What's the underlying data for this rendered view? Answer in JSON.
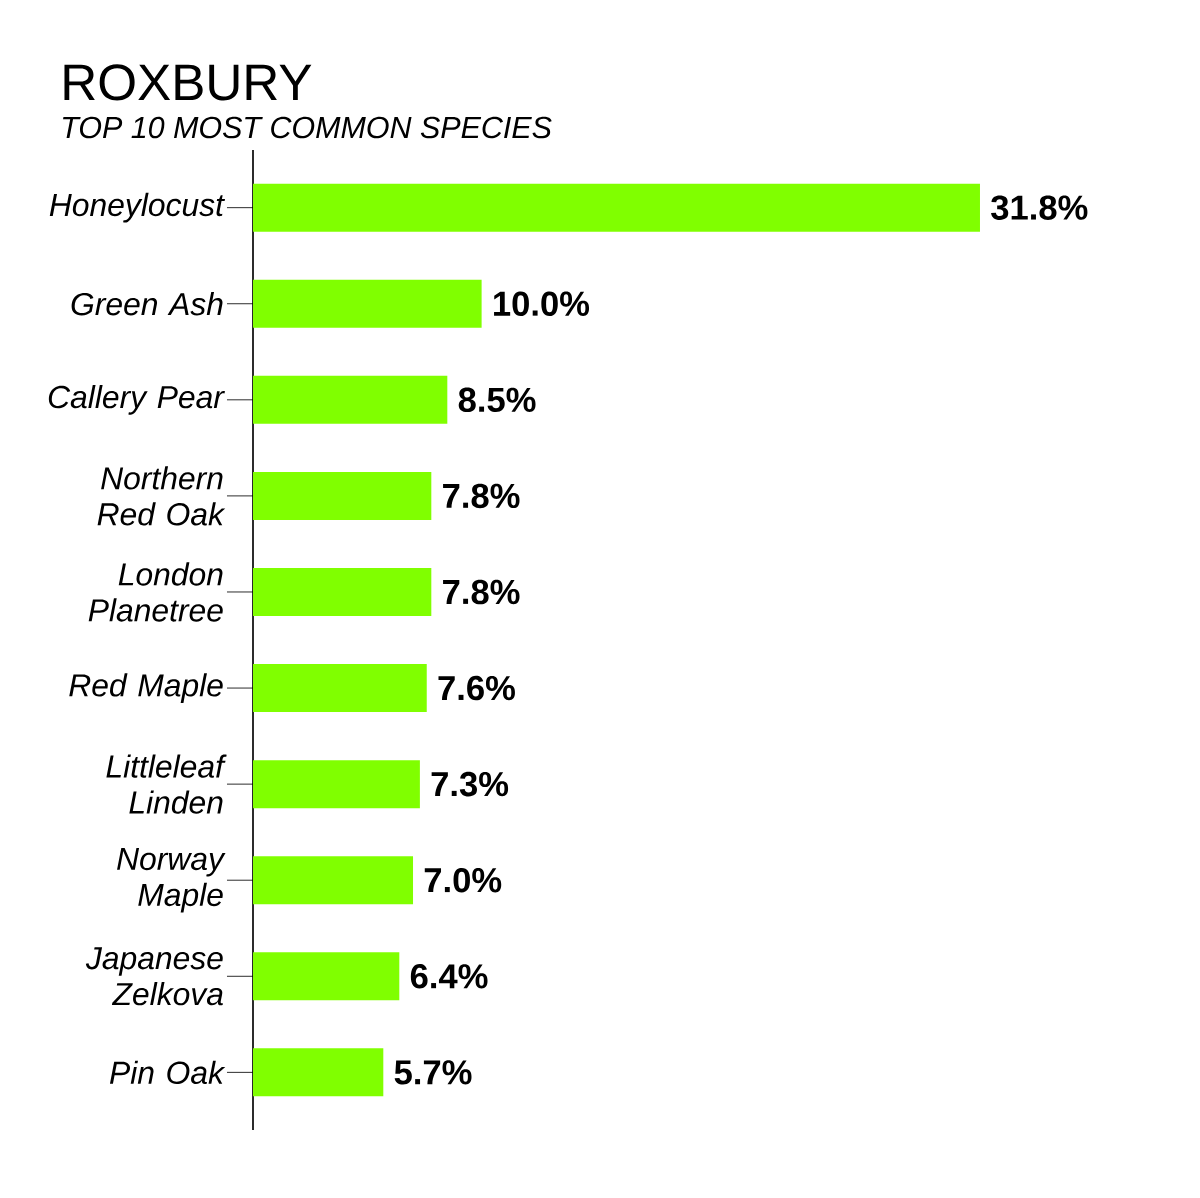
{
  "chart_data": {
    "type": "bar",
    "orientation": "horizontal",
    "title": "ROXBURY",
    "subtitle": "TOP 10 MOST COMMON SPECIES",
    "categories": [
      "Honeylocust",
      "Green Ash",
      "Callery Pear",
      "Northern Red Oak",
      "London Planetree",
      "Red Maple",
      "Littleleaf Linden",
      "Norway Maple",
      "Japanese Zelkova",
      "Pin Oak"
    ],
    "values": [
      31.8,
      10.0,
      8.5,
      7.8,
      7.8,
      7.6,
      7.3,
      7.0,
      6.4,
      5.7
    ],
    "value_labels": [
      "31.8%",
      "10.0%",
      "8.5%",
      "7.8%",
      "7.8%",
      "7.6%",
      "7.3%",
      "7.0%",
      "6.4%",
      "5.7%"
    ],
    "color": "#80ff00"
  }
}
